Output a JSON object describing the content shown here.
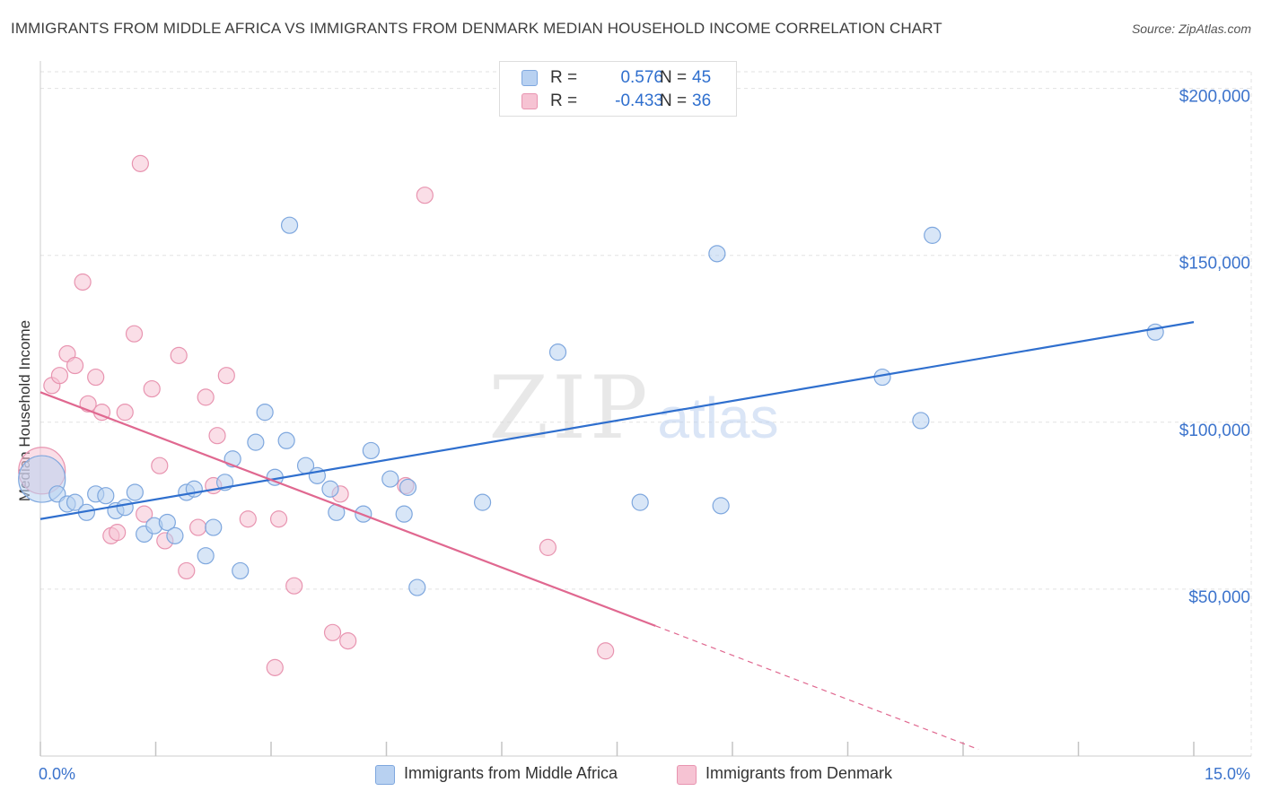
{
  "header": {
    "title": "IMMIGRANTS FROM MIDDLE AFRICA VS IMMIGRANTS FROM DENMARK MEDIAN HOUSEHOLD INCOME CORRELATION CHART",
    "source": "Source: ZipAtlas.com"
  },
  "watermark": {
    "zip": "ZIP",
    "atlas": "atlas"
  },
  "legend": {
    "r_label": "R =",
    "n_label": "N =",
    "entries": [
      {
        "r": "0.576",
        "n": "45"
      },
      {
        "r": "-0.433",
        "n": "36"
      }
    ]
  },
  "colors": {
    "blue_fill": "#b8d1f1",
    "blue_stroke": "#7ea7de",
    "blue_line": "#2f6fce",
    "pink_fill": "#f6c3d3",
    "pink_stroke": "#e894b0",
    "pink_line": "#e06890",
    "tick_text": "#3b73cc",
    "grid": "#e2e2e2"
  },
  "chart_data": {
    "type": "scatter",
    "title": "IMMIGRANTS FROM MIDDLE AFRICA VS IMMIGRANTS FROM DENMARK MEDIAN HOUSEHOLD INCOME CORRELATION CHART",
    "xlabel": "",
    "ylabel": "Median Household Income",
    "xlim": [
      0,
      15
    ],
    "ylim": [
      0,
      205000
    ],
    "x_tick_labels": [
      "0.0%",
      "15.0%"
    ],
    "y_ticks": [
      50000,
      100000,
      150000,
      200000
    ],
    "y_tick_labels": [
      "$50,000",
      "$100,000",
      "$150,000",
      "$200,000"
    ],
    "grid": true,
    "legend_position": "bottom-center",
    "series": [
      {
        "name": "Immigrants from Middle Africa",
        "color": "#7ea7de",
        "r": 0.576,
        "n": 45,
        "trend": {
          "x": [
            0.0,
            15.0
          ],
          "y": [
            71000,
            130000
          ]
        },
        "points": [
          {
            "x": 0.02,
            "y": 83000,
            "size": "large"
          },
          {
            "x": 0.22,
            "y": 78500
          },
          {
            "x": 0.35,
            "y": 75500
          },
          {
            "x": 0.45,
            "y": 76000
          },
          {
            "x": 0.6,
            "y": 73000
          },
          {
            "x": 0.72,
            "y": 78500
          },
          {
            "x": 0.85,
            "y": 78000
          },
          {
            "x": 0.98,
            "y": 73500
          },
          {
            "x": 1.1,
            "y": 74500
          },
          {
            "x": 1.23,
            "y": 79000
          },
          {
            "x": 1.35,
            "y": 66500
          },
          {
            "x": 1.48,
            "y": 69000
          },
          {
            "x": 1.65,
            "y": 70000
          },
          {
            "x": 1.75,
            "y": 66000
          },
          {
            "x": 1.9,
            "y": 79000
          },
          {
            "x": 2.0,
            "y": 80000
          },
          {
            "x": 2.15,
            "y": 60000
          },
          {
            "x": 2.25,
            "y": 68500
          },
          {
            "x": 2.4,
            "y": 82000
          },
          {
            "x": 2.5,
            "y": 89000
          },
          {
            "x": 2.6,
            "y": 55500
          },
          {
            "x": 2.8,
            "y": 94000
          },
          {
            "x": 2.92,
            "y": 103000
          },
          {
            "x": 3.05,
            "y": 83500
          },
          {
            "x": 3.2,
            "y": 94500
          },
          {
            "x": 3.45,
            "y": 87000
          },
          {
            "x": 3.6,
            "y": 84000
          },
          {
            "x": 3.77,
            "y": 80000
          },
          {
            "x": 3.85,
            "y": 73000
          },
          {
            "x": 4.2,
            "y": 72500
          },
          {
            "x": 4.3,
            "y": 91500
          },
          {
            "x": 4.55,
            "y": 83000
          },
          {
            "x": 4.73,
            "y": 72500
          },
          {
            "x": 4.78,
            "y": 80500
          },
          {
            "x": 4.9,
            "y": 50500
          },
          {
            "x": 5.75,
            "y": 76000
          },
          {
            "x": 6.73,
            "y": 121000
          },
          {
            "x": 7.8,
            "y": 76000
          },
          {
            "x": 8.85,
            "y": 75000
          },
          {
            "x": 8.8,
            "y": 150500
          },
          {
            "x": 3.24,
            "y": 159000
          },
          {
            "x": 10.95,
            "y": 113500
          },
          {
            "x": 11.45,
            "y": 100500
          },
          {
            "x": 11.6,
            "y": 156000
          },
          {
            "x": 14.5,
            "y": 127000
          }
        ]
      },
      {
        "name": "Immigrants from Denmark",
        "color": "#e894b0",
        "r": -0.433,
        "n": 36,
        "trend": {
          "x": [
            0.0,
            8.0
          ],
          "y": [
            109000,
            39000
          ],
          "dashed_to": {
            "x": 12.2,
            "y": 2000
          }
        },
        "points": [
          {
            "x": 0.02,
            "y": 85500,
            "size": "large"
          },
          {
            "x": 0.15,
            "y": 111000
          },
          {
            "x": 0.25,
            "y": 114000
          },
          {
            "x": 0.35,
            "y": 120500
          },
          {
            "x": 0.45,
            "y": 117000
          },
          {
            "x": 0.55,
            "y": 142000
          },
          {
            "x": 0.62,
            "y": 105500
          },
          {
            "x": 0.72,
            "y": 113500
          },
          {
            "x": 0.8,
            "y": 103000
          },
          {
            "x": 0.92,
            "y": 66000
          },
          {
            "x": 1.0,
            "y": 67000
          },
          {
            "x": 1.1,
            "y": 103000
          },
          {
            "x": 1.22,
            "y": 126500
          },
          {
            "x": 1.3,
            "y": 177500
          },
          {
            "x": 1.35,
            "y": 72500
          },
          {
            "x": 1.45,
            "y": 110000
          },
          {
            "x": 1.55,
            "y": 87000
          },
          {
            "x": 1.62,
            "y": 64500
          },
          {
            "x": 1.8,
            "y": 120000
          },
          {
            "x": 1.9,
            "y": 55500
          },
          {
            "x": 2.05,
            "y": 68500
          },
          {
            "x": 2.15,
            "y": 107500
          },
          {
            "x": 2.25,
            "y": 81000
          },
          {
            "x": 2.3,
            "y": 96000
          },
          {
            "x": 2.42,
            "y": 114000
          },
          {
            "x": 2.7,
            "y": 71000
          },
          {
            "x": 3.05,
            "y": 26500
          },
          {
            "x": 3.1,
            "y": 71000
          },
          {
            "x": 3.3,
            "y": 51000
          },
          {
            "x": 3.8,
            "y": 37000
          },
          {
            "x": 3.9,
            "y": 78500
          },
          {
            "x": 4.0,
            "y": 34500
          },
          {
            "x": 4.75,
            "y": 81000
          },
          {
            "x": 5.0,
            "y": 168000
          },
          {
            "x": 6.6,
            "y": 62500
          },
          {
            "x": 7.35,
            "y": 31500
          }
        ]
      }
    ]
  }
}
